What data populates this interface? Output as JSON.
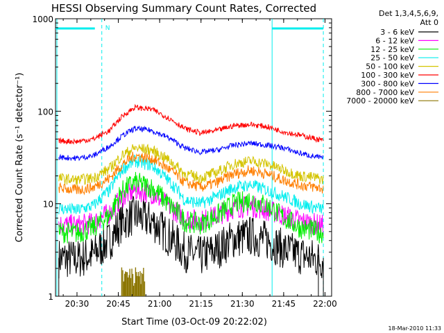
{
  "chart_data": {
    "type": "line",
    "title": "HESSI Observing Summary Count Rates, Corrected",
    "xlabel": "Start Time (03-Oct-09 20:22:02)",
    "ylabel": "Corrected Count Rate (s⁻¹ detector⁻¹)",
    "y_scale": "log",
    "ylim": [
      1,
      1000
    ],
    "xlim_minutes": [
      20.37,
      22.04
    ],
    "x_tick_labels": [
      "20:30",
      "20:45",
      "21:00",
      "21:15",
      "21:30",
      "21:45",
      "22:00"
    ],
    "y_tick_labels": [
      "1",
      "10",
      "100",
      "1000"
    ],
    "legend_header": [
      "Det 1,3,4,5,6,9,",
      "Att 0"
    ],
    "legend_position": "right",
    "footer_date": "18-Mar-2010 11:33",
    "night_marker_label": "N",
    "series": [
      {
        "name": "3 - 6 keV",
        "color": "#000000"
      },
      {
        "name": "6 - 12 keV",
        "color": "#ff00ff"
      },
      {
        "name": "12 - 25 keV",
        "color": "#00ee00"
      },
      {
        "name": "25 - 50 keV",
        "color": "#00eeee"
      },
      {
        "name": "50 - 100 keV",
        "color": "#d4c400"
      },
      {
        "name": "100 - 300 keV",
        "color": "#ff0000"
      },
      {
        "name": "300 - 800 keV",
        "color": "#0000ff"
      },
      {
        "name": "800 - 7000 keV",
        "color": "#ff7f00"
      },
      {
        "name": "7000 - 20000 keV",
        "color": "#8b7500"
      }
    ],
    "series_shape": {
      "x_hours": [
        20.37,
        20.5,
        20.6,
        20.7,
        20.78,
        20.85,
        20.95,
        21.05,
        21.15,
        21.25,
        21.35,
        21.45,
        21.55,
        21.65,
        21.75,
        21.85,
        21.95,
        22.04
      ],
      "levels": {
        "100 - 300 keV": [
          48,
          47,
          50,
          62,
          90,
          110,
          105,
          85,
          65,
          58,
          62,
          70,
          72,
          68,
          60,
          55,
          50,
          46
        ],
        "300 - 800 keV": [
          32,
          31,
          33,
          42,
          55,
          65,
          62,
          52,
          40,
          36,
          38,
          43,
          45,
          43,
          40,
          35,
          32,
          30
        ],
        "50 - 100 keV": [
          19,
          18,
          19,
          24,
          34,
          40,
          38,
          30,
          21,
          19,
          22,
          27,
          29,
          27,
          23,
          20,
          19,
          17
        ],
        "800 - 7000 keV": [
          15,
          14,
          15,
          19,
          27,
          33,
          31,
          24,
          17,
          15,
          17,
          21,
          23,
          21,
          18,
          16,
          15,
          14
        ],
        "25 - 50 keV": [
          9,
          8.5,
          9.5,
          14,
          24,
          29,
          26,
          18,
          11,
          10,
          12,
          15,
          16,
          14,
          12,
          10,
          9,
          8.5
        ],
        "12 - 25 keV": [
          5,
          4.8,
          5.5,
          7.5,
          14,
          17,
          15,
          10,
          6.5,
          6,
          7.5,
          10,
          11,
          9.5,
          7,
          5.5,
          5,
          4.5
        ],
        "6 - 12 keV": [
          6,
          5.8,
          6.2,
          8,
          12,
          14,
          13,
          9.5,
          7,
          6.5,
          7.5,
          9,
          9.5,
          8.5,
          7.5,
          6.5,
          6,
          5.5
        ],
        "3 - 6 keV": [
          2.6,
          2.5,
          2.8,
          4,
          6.5,
          7.5,
          6.5,
          4.5,
          3,
          2.7,
          3.2,
          4.2,
          4.5,
          4,
          3.2,
          2.8,
          2.5,
          2.4
        ]
      }
    }
  }
}
